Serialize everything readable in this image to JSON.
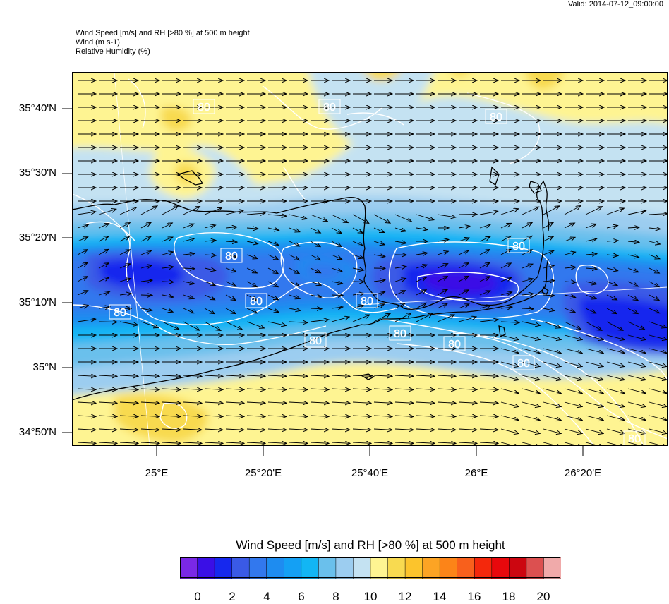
{
  "valid_time": "Valid: 2014-07-12_09:00:00",
  "header": {
    "line1": "Wind Speed [m/s] and RH [>80 %] at 500 m height",
    "line2": "Wind   (m s-1)",
    "line3": "Relative Humidity   (%)"
  },
  "map": {
    "lat_labels": [
      "35°40'N",
      "35°30'N",
      "35°20'N",
      "35°10'N",
      "35°N",
      "34°50'N"
    ],
    "lon_labels": [
      "25°E",
      "25°20'E",
      "25°40'E",
      "26°E",
      "26°20'E"
    ],
    "contour_label": "80",
    "rh_contour_labels": [
      "80",
      "80",
      "80",
      "80",
      "80",
      "80",
      "80",
      "80",
      "80",
      "80",
      "80",
      "80",
      "80"
    ]
  },
  "colorbar": {
    "title": "Wind Speed [m/s] and RH [>80 %] at 500 m height",
    "tick_labels": [
      "0",
      "2",
      "4",
      "6",
      "8",
      "10",
      "12",
      "14",
      "16",
      "18",
      "20"
    ],
    "colors": [
      "#7a28e6",
      "#3a0fe6",
      "#1628ee",
      "#3a5ae6",
      "#3278ee",
      "#1e8cf0",
      "#14a0f4",
      "#12b6f4",
      "#6ac0ec",
      "#9ccdf0",
      "#c4e2f2",
      "#fef492",
      "#f8da50",
      "#fcc42c",
      "#fca424",
      "#fc8418",
      "#f8601c",
      "#f4280c",
      "#e8080c",
      "#cc0610",
      "#dc5050",
      "#f0aaaa"
    ]
  }
}
